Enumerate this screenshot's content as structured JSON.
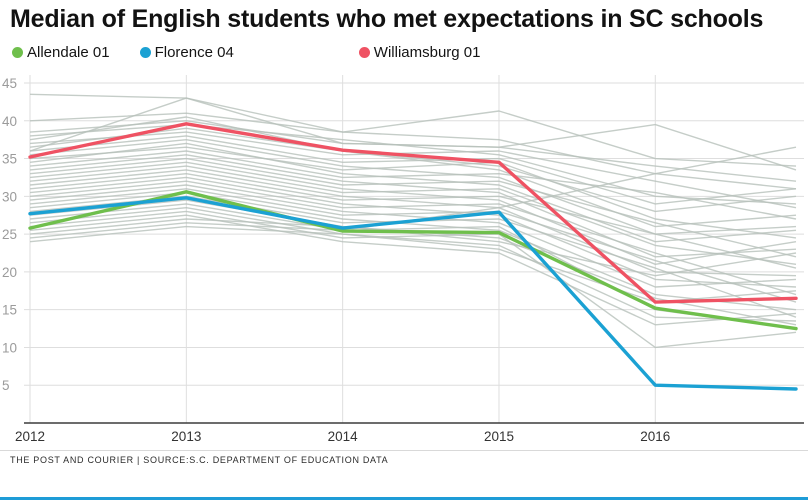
{
  "header": {
    "title": "Median of English students who met expectations in SC schools"
  },
  "legend": {
    "items": [
      {
        "label": "Allendale 01",
        "color": "#6fbf4c"
      },
      {
        "label": "Florence 04",
        "color": "#1ba1d3"
      },
      {
        "label": "Williamsburg 01",
        "color": "#ef5263"
      }
    ]
  },
  "footer": {
    "source_line": "THE POST AND COURIER | SOURCE:S.C. DEPARTMENT OF EDUCATION DATA",
    "accent_bar_color": "#1e9cd7"
  },
  "chart_data": {
    "type": "line",
    "title": "Median of English students who met expectations in SC schools",
    "xlabel": "",
    "ylabel": "",
    "x": [
      2012,
      2013,
      2014,
      2015,
      2016,
      2016.9
    ],
    "x_ticks": [
      2012,
      2013,
      2014,
      2015,
      2016
    ],
    "y_ticks": [
      5,
      10,
      15,
      20,
      25,
      30,
      35,
      40,
      45
    ],
    "ylim": [
      0,
      45
    ],
    "grid": true,
    "legend_position": "top",
    "colors": {
      "background_line": "#b6c0ba",
      "gridline": "#dedede",
      "axis": "#3c3c3c",
      "y_tick_label": "#9b9b9b",
      "x_tick_label": "#333333"
    },
    "highlighted_series": [
      {
        "name": "Allendale 01",
        "color": "#6fbf4c",
        "values": [
          25.8,
          30.6,
          25.4,
          25.2,
          15.2,
          12.5
        ]
      },
      {
        "name": "Florence 04",
        "color": "#1ba1d3",
        "values": [
          27.7,
          29.8,
          25.8,
          27.9,
          5.0,
          4.5
        ]
      },
      {
        "name": "Williamsburg 01",
        "color": "#ef5263",
        "values": [
          35.2,
          39.6,
          36.1,
          34.5,
          16.0,
          16.5
        ]
      }
    ],
    "background_series": [
      [
        43.5,
        43.0,
        38.5,
        37.5,
        33.0,
        36.5
      ],
      [
        40.0,
        41.0,
        38.5,
        41.3,
        35.0,
        34.0
      ],
      [
        38.5,
        40.0,
        37.0,
        36.5,
        39.5,
        33.5
      ],
      [
        38.0,
        39.5,
        37.5,
        35.5,
        30.0,
        29.0
      ],
      [
        37.5,
        40.5,
        36.0,
        34.0,
        28.0,
        30.0
      ],
      [
        37.0,
        38.5,
        35.5,
        36.0,
        32.0,
        28.5
      ],
      [
        36.5,
        39.0,
        36.0,
        33.5,
        26.0,
        27.5
      ],
      [
        36.0,
        43.0,
        37.0,
        36.5,
        34.0,
        32.0
      ],
      [
        36.0,
        38.0,
        34.5,
        35.0,
        29.0,
        31.0
      ],
      [
        35.5,
        37.5,
        34.0,
        32.5,
        25.0,
        26.0
      ],
      [
        35.0,
        36.5,
        33.5,
        34.5,
        27.0,
        24.5
      ],
      [
        34.5,
        37.0,
        33.0,
        31.5,
        24.0,
        25.5
      ],
      [
        34.0,
        36.0,
        32.5,
        33.0,
        30.5,
        27.0
      ],
      [
        33.5,
        35.5,
        32.0,
        30.5,
        22.0,
        23.0
      ],
      [
        33.0,
        35.0,
        31.5,
        32.0,
        26.5,
        22.0
      ],
      [
        32.5,
        34.5,
        31.0,
        29.5,
        21.0,
        24.0
      ],
      [
        32.0,
        34.0,
        30.5,
        31.0,
        23.5,
        21.0
      ],
      [
        31.5,
        33.5,
        30.0,
        28.5,
        20.0,
        19.5
      ],
      [
        31.0,
        33.0,
        29.5,
        30.0,
        25.0,
        20.5
      ],
      [
        30.5,
        32.5,
        29.0,
        27.5,
        19.0,
        18.0
      ],
      [
        30.0,
        32.0,
        28.5,
        29.0,
        22.5,
        17.0
      ],
      [
        29.5,
        31.5,
        28.0,
        26.5,
        18.0,
        19.0
      ],
      [
        29.0,
        31.0,
        27.5,
        28.0,
        21.5,
        16.0
      ],
      [
        28.5,
        30.5,
        27.0,
        25.5,
        17.0,
        15.0
      ],
      [
        28.0,
        30.0,
        26.5,
        27.0,
        20.5,
        14.0
      ],
      [
        27.5,
        29.5,
        26.0,
        24.5,
        16.5,
        13.0
      ],
      [
        27.0,
        29.0,
        25.5,
        26.0,
        15.0,
        12.5
      ],
      [
        26.5,
        28.5,
        25.0,
        23.5,
        14.0,
        13.5
      ],
      [
        26.0,
        28.0,
        24.5,
        25.0,
        10.0,
        12.0
      ],
      [
        25.5,
        27.5,
        24.0,
        22.5,
        13.0,
        14.5
      ],
      [
        25.0,
        27.0,
        26.0,
        24.0,
        19.5,
        22.5
      ],
      [
        24.5,
        26.5,
        25.5,
        28.5,
        33.0,
        31.0
      ],
      [
        24.0,
        26.0,
        25.0,
        23.0,
        16.0,
        17.5
      ]
    ]
  }
}
